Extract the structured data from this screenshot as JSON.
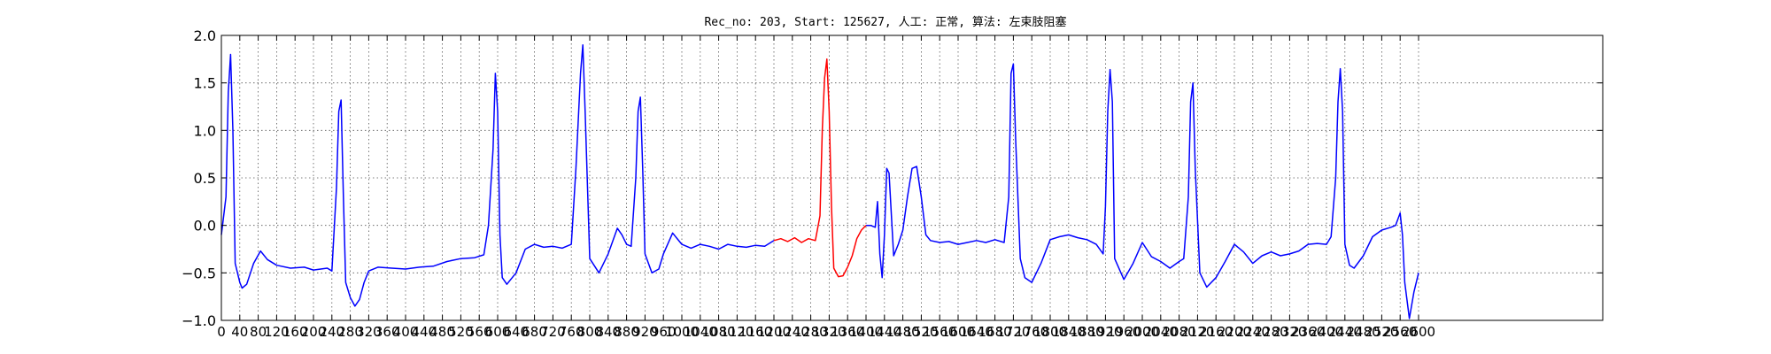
{
  "chart_data": {
    "type": "line",
    "title": "Rec_no: 203, Start: 125627, 人工: 正常, 算法: 左束肢阻塞",
    "xlabel": "",
    "ylabel": "",
    "xlim": [
      0,
      3000
    ],
    "ylim": [
      -1.0,
      2.0
    ],
    "grid": true,
    "y_ticks": [
      "2.0",
      "1.5",
      "1.0",
      "0.5",
      "0.0",
      "−0.5",
      "−1.0"
    ],
    "x_ticks": [
      "0",
      "40",
      "80",
      "120",
      "160",
      "200",
      "240",
      "280",
      "320",
      "360",
      "400",
      "440",
      "480",
      "520",
      "560",
      "600",
      "640",
      "680",
      "720",
      "760",
      "800",
      "840",
      "880",
      "920",
      "960",
      "1000",
      "1040",
      "1080",
      "1120",
      "1160",
      "1200",
      "1240",
      "1280",
      "1320",
      "1360",
      "1400",
      "1440",
      "1480",
      "1520",
      "1560",
      "1600",
      "1640",
      "1680",
      "1720",
      "1760",
      "1800",
      "1840",
      "1880",
      "1920",
      "1960",
      "2000",
      "2040",
      "2080",
      "2120",
      "2160",
      "2200",
      "2240",
      "2280",
      "2320",
      "2360",
      "2400",
      "2440",
      "2480",
      "2520",
      "2560",
      "2600"
    ],
    "series": [
      {
        "color": "#0000ff",
        "segments": [
          {
            "x": [
              0,
              10,
              15,
              20,
              25,
              30,
              40,
              45,
              55,
              70,
              85,
              100,
              120,
              150,
              180,
              200,
              230,
              240,
              250,
              255,
              260,
              265,
              270,
              280,
              290,
              300,
              310,
              320,
              340,
              370,
              400,
              430,
              460,
              490,
              520,
              550,
              570,
              580,
              590,
              595,
              600,
              605,
              610,
              620,
              640,
              660,
              680,
              700,
              720,
              740,
              760,
              770,
              780,
              785,
              790,
              800,
              820,
              840,
              860,
              870,
              880,
              890,
              900,
              905,
              910,
              915,
              920,
              935,
              950,
              960,
              980,
              1000,
              1020,
              1040,
              1060,
              1080,
              1100,
              1120,
              1140,
              1160,
              1180,
              1200
            ],
            "y": [
              -0.1,
              0.3,
              1.4,
              1.8,
              1.0,
              -0.4,
              -0.6,
              -0.66,
              -0.62,
              -0.4,
              -0.27,
              -0.36,
              -0.42,
              -0.45,
              -0.44,
              -0.47,
              -0.45,
              -0.48,
              0.4,
              1.2,
              1.32,
              0.3,
              -0.6,
              -0.76,
              -0.85,
              -0.78,
              -0.6,
              -0.48,
              -0.44,
              -0.45,
              -0.46,
              -0.44,
              -0.43,
              -0.38,
              -0.35,
              -0.34,
              -0.31,
              0.0,
              0.8,
              1.6,
              1.2,
              -0.1,
              -0.55,
              -0.62,
              -0.5,
              -0.25,
              -0.2,
              -0.23,
              -0.22,
              -0.24,
              -0.2,
              0.6,
              1.6,
              1.9,
              1.2,
              -0.35,
              -0.5,
              -0.3,
              -0.03,
              -0.1,
              -0.2,
              -0.22,
              0.5,
              1.2,
              1.35,
              0.6,
              -0.3,
              -0.5,
              -0.46,
              -0.3,
              -0.08,
              -0.2,
              -0.24,
              -0.2,
              -0.22,
              -0.25,
              -0.2,
              -0.22,
              -0.23,
              -0.21,
              -0.22,
              -0.16
            ]
          },
          {
            "x": [
              1400,
              1410,
              1420,
              1425,
              1430,
              1435,
              1440,
              1445,
              1450,
              1460,
              1470,
              1480,
              1490,
              1500,
              1510,
              1520,
              1530,
              1540,
              1560,
              1580,
              1600,
              1620,
              1640,
              1660,
              1680,
              1700,
              1710,
              1715,
              1720,
              1725,
              1735,
              1745,
              1760,
              1780,
              1800,
              1820,
              1840,
              1860,
              1880,
              1900,
              1915,
              1920,
              1925,
              1930,
              1935,
              1940,
              1960,
              1980,
              2000,
              2020,
              2040,
              2060,
              2080,
              2090,
              2100,
              2105,
              2110,
              2115,
              2125,
              2140,
              2160,
              2180,
              2200,
              2220,
              2240,
              2260,
              2280,
              2300,
              2320,
              2340,
              2360,
              2380,
              2400,
              2410,
              2420,
              2425,
              2430,
              2435,
              2440,
              2450,
              2460,
              2480,
              2500,
              2520,
              2540,
              2550,
              2560,
              2565,
              2570,
              2580,
              2590,
              2600
            ],
            "y": [
              0.0,
              0.0,
              -0.02,
              0.25,
              -0.3,
              -0.55,
              -0.1,
              0.6,
              0.55,
              -0.32,
              -0.2,
              -0.05,
              0.3,
              0.6,
              0.62,
              0.3,
              -0.1,
              -0.16,
              -0.18,
              -0.17,
              -0.2,
              -0.18,
              -0.16,
              -0.18,
              -0.15,
              -0.18,
              0.3,
              1.6,
              1.7,
              0.9,
              -0.35,
              -0.55,
              -0.6,
              -0.4,
              -0.15,
              -0.12,
              -0.1,
              -0.13,
              -0.15,
              -0.2,
              -0.3,
              0.2,
              1.2,
              1.64,
              1.3,
              -0.35,
              -0.57,
              -0.4,
              -0.18,
              -0.33,
              -0.38,
              -0.45,
              -0.38,
              -0.35,
              0.3,
              1.3,
              1.5,
              0.6,
              -0.5,
              -0.65,
              -0.55,
              -0.38,
              -0.2,
              -0.28,
              -0.4,
              -0.32,
              -0.28,
              -0.32,
              -0.3,
              -0.27,
              -0.2,
              -0.19,
              -0.2,
              -0.12,
              0.5,
              1.3,
              1.65,
              1.2,
              -0.2,
              -0.42,
              -0.45,
              -0.32,
              -0.12,
              -0.05,
              -0.02,
              0.0,
              0.13,
              -0.1,
              -0.6,
              -0.98,
              -0.7,
              -0.5
            ]
          }
        ]
      },
      {
        "color": "#ff0000",
        "segments": [
          {
            "x": [
              1200,
              1215,
              1230,
              1245,
              1260,
              1275,
              1290,
              1300,
              1305,
              1310,
              1315,
              1320,
              1325,
              1330,
              1340,
              1350,
              1360,
              1370,
              1380,
              1390,
              1400
            ],
            "y": [
              -0.16,
              -0.14,
              -0.17,
              -0.13,
              -0.18,
              -0.14,
              -0.16,
              0.1,
              1.0,
              1.55,
              1.75,
              1.2,
              0.2,
              -0.45,
              -0.54,
              -0.53,
              -0.44,
              -0.32,
              -0.14,
              -0.05,
              0.0
            ]
          }
        ]
      }
    ]
  }
}
